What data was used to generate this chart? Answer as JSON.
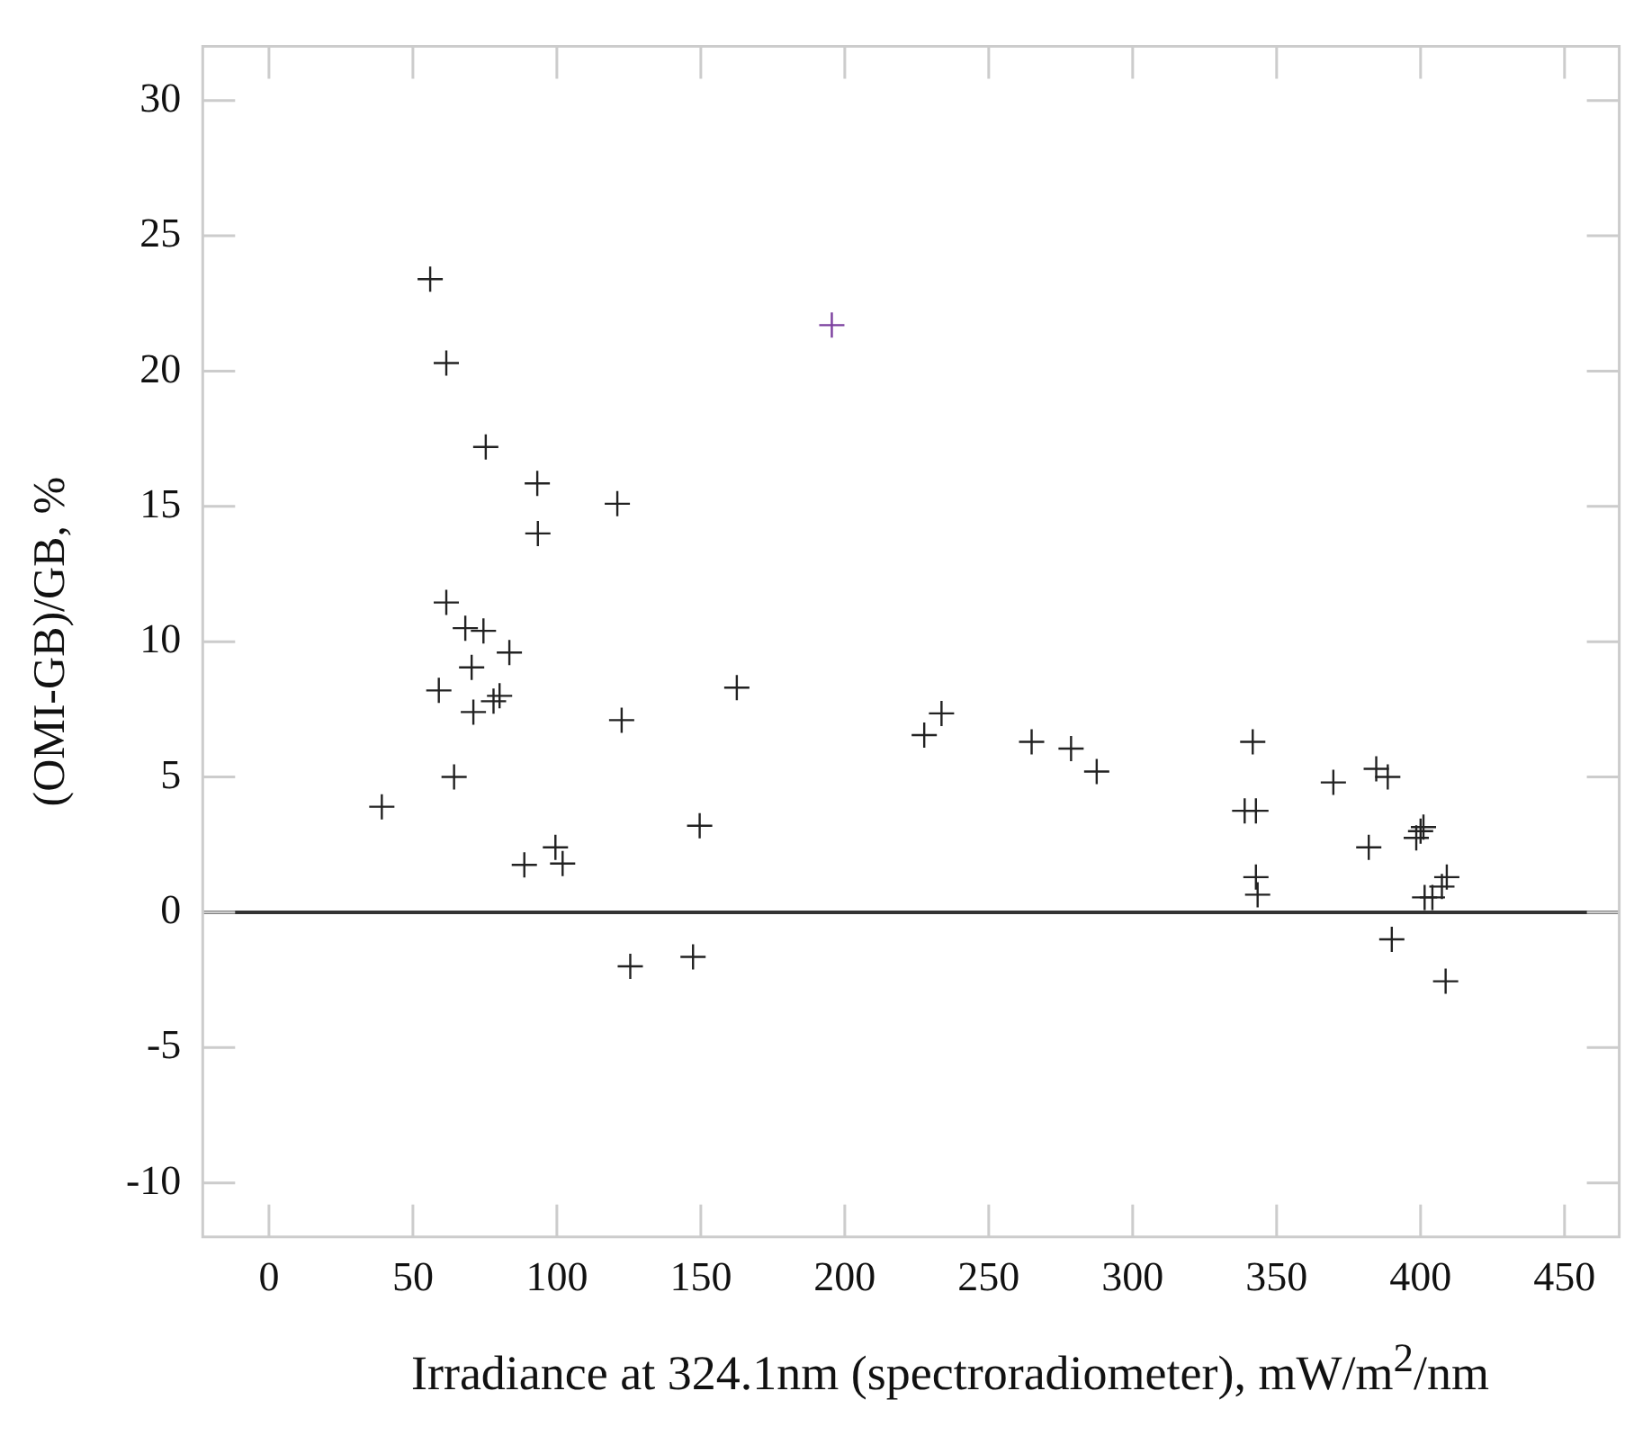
{
  "chart_data": {
    "type": "scatter",
    "xlabel": "Irradiance at 324.1nm (spectroradiometer), mW/m$^{2}$/nm",
    "ylabel": "(OMI-GB)/GB, %",
    "xlim": [
      -23,
      469
    ],
    "ylim": [
      -12,
      32
    ],
    "xticks": [
      0,
      50,
      100,
      150,
      200,
      250,
      300,
      350,
      400,
      450
    ],
    "yticks": [
      -10,
      -5,
      0,
      5,
      10,
      15,
      20,
      25,
      30
    ],
    "grid": false,
    "legend": false,
    "marker": "cross",
    "ref_lines": [
      {
        "axis": "y",
        "value": 0,
        "color": "#333333"
      }
    ],
    "series": [
      {
        "color": "#222222",
        "x": [
          56,
          61.6,
          75.3,
          93.2,
          121,
          93.4,
          61.6,
          68.2,
          74.5,
          83.5,
          70.4,
          59,
          80.1,
          78,
          71,
          122.5,
          162.5,
          64.3,
          39.2,
          149.6,
          99.5,
          88.7,
          102,
          125.5,
          147.3,
          233.6,
          227.6,
          264.9,
          278.6,
          341.7,
          287.5,
          338.9,
          342.8,
          342.8,
          343.4,
          369.7,
          384.6,
          388.6,
          382,
          398.5,
          400,
          401,
          401.4,
          404.1,
          409.1,
          407.4,
          390,
          408.7
        ],
        "values": [
          23.4,
          20.3,
          17.2,
          15.85,
          15.1,
          14,
          11.45,
          10.5,
          10.4,
          9.6,
          9.05,
          8.2,
          8,
          7.8,
          7.4,
          7.1,
          8.3,
          5,
          3.9,
          3.2,
          2.4,
          1.75,
          1.8,
          -2,
          -1.65,
          7.35,
          6.55,
          6.3,
          6.05,
          6.3,
          5.2,
          3.75,
          3.75,
          1.3,
          0.65,
          4.8,
          5.3,
          5,
          2.4,
          2.75,
          3,
          3.15,
          0.55,
          0.55,
          1.3,
          0.95,
          -1,
          -2.55
        ]
      },
      {
        "color": "#7b3f9e",
        "x": [
          195.5
        ],
        "values": [
          21.7
        ]
      }
    ]
  }
}
